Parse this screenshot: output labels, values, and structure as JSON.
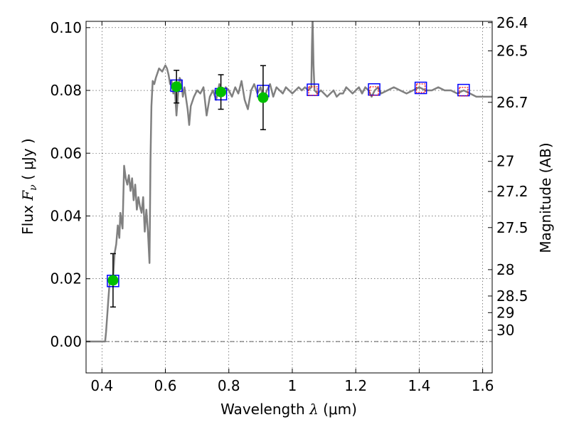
{
  "chart_data": {
    "type": "scatter",
    "xlabel": {
      "prefix": "Wavelength ",
      "symbol": "λ",
      "unit": " (μm)"
    },
    "ylabel": {
      "prefix": "Flux ",
      "symbol": "F",
      "subscript": "ν",
      "unit": " ( μJy )"
    },
    "ylabel_right": "Magnitude (AB)",
    "xlim": [
      0.35,
      1.63
    ],
    "ylim": [
      -0.01,
      0.102
    ],
    "grid": true,
    "x_ticks": [
      {
        "value": 0.4,
        "label": "0.4"
      },
      {
        "value": 0.6,
        "label": "0.6"
      },
      {
        "value": 0.8,
        "label": "0.8"
      },
      {
        "value": 1.0,
        "label": "1"
      },
      {
        "value": 1.2,
        "label": "1.2"
      },
      {
        "value": 1.4,
        "label": "1.4"
      },
      {
        "value": 1.6,
        "label": "1.6"
      }
    ],
    "y_ticks": [
      {
        "value": 0.0,
        "label": "0.00"
      },
      {
        "value": 0.02,
        "label": "0.02"
      },
      {
        "value": 0.04,
        "label": "0.04"
      },
      {
        "value": 0.06,
        "label": "0.06"
      },
      {
        "value": 0.08,
        "label": "0.08"
      },
      {
        "value": 0.1,
        "label": "0.10"
      }
    ],
    "mag_ticks": [
      {
        "value": 0.1016,
        "label": "26.4"
      },
      {
        "value": 0.0926,
        "label": "26.5"
      },
      {
        "value": 0.0762,
        "label": "26.7"
      },
      {
        "value": 0.0574,
        "label": "27"
      },
      {
        "value": 0.0478,
        "label": "27.2"
      },
      {
        "value": 0.0363,
        "label": "27.5"
      },
      {
        "value": 0.0229,
        "label": "28"
      },
      {
        "value": 0.0145,
        "label": "28.5"
      },
      {
        "value": 0.0092,
        "label": "29"
      },
      {
        "value": 0.0036,
        "label": "30"
      }
    ],
    "sed_model": {
      "color": "#808080",
      "x": [
        0.35,
        0.41,
        0.413,
        0.418,
        0.42,
        0.425,
        0.43,
        0.435,
        0.44,
        0.445,
        0.45,
        0.455,
        0.458,
        0.462,
        0.465,
        0.47,
        0.475,
        0.48,
        0.485,
        0.49,
        0.495,
        0.5,
        0.505,
        0.51,
        0.515,
        0.52,
        0.525,
        0.53,
        0.535,
        0.54,
        0.545,
        0.55,
        0.553,
        0.556,
        0.56,
        0.565,
        0.57,
        0.58,
        0.59,
        0.6,
        0.605,
        0.61,
        0.615,
        0.62,
        0.625,
        0.63,
        0.635,
        0.64,
        0.645,
        0.65,
        0.655,
        0.66,
        0.67,
        0.675,
        0.68,
        0.69,
        0.7,
        0.71,
        0.72,
        0.73,
        0.74,
        0.75,
        0.76,
        0.77,
        0.78,
        0.79,
        0.8,
        0.81,
        0.82,
        0.83,
        0.84,
        0.85,
        0.86,
        0.87,
        0.88,
        0.89,
        0.9,
        0.91,
        0.92,
        0.93,
        0.94,
        0.95,
        0.96,
        0.97,
        0.98,
        0.99,
        1.0,
        1.01,
        1.02,
        1.03,
        1.04,
        1.05,
        1.06,
        1.062,
        1.064,
        1.067,
        1.07,
        1.08,
        1.09,
        1.1,
        1.11,
        1.12,
        1.13,
        1.14,
        1.15,
        1.16,
        1.17,
        1.18,
        1.19,
        1.2,
        1.21,
        1.22,
        1.23,
        1.24,
        1.25,
        1.26,
        1.27,
        1.28,
        1.3,
        1.32,
        1.34,
        1.36,
        1.38,
        1.4,
        1.42,
        1.44,
        1.46,
        1.48,
        1.5,
        1.52,
        1.54,
        1.56,
        1.58,
        1.6,
        1.63
      ],
      "y": [
        0.0,
        0.0,
        0.003,
        0.01,
        0.013,
        0.02,
        0.021,
        0.02,
        0.028,
        0.031,
        0.037,
        0.033,
        0.041,
        0.038,
        0.036,
        0.056,
        0.052,
        0.05,
        0.053,
        0.048,
        0.052,
        0.045,
        0.05,
        0.042,
        0.046,
        0.043,
        0.041,
        0.046,
        0.035,
        0.042,
        0.035,
        0.025,
        0.058,
        0.075,
        0.083,
        0.082,
        0.084,
        0.087,
        0.086,
        0.088,
        0.087,
        0.085,
        0.082,
        0.083,
        0.079,
        0.08,
        0.072,
        0.079,
        0.084,
        0.083,
        0.078,
        0.081,
        0.074,
        0.069,
        0.075,
        0.078,
        0.08,
        0.079,
        0.081,
        0.072,
        0.078,
        0.08,
        0.077,
        0.082,
        0.079,
        0.081,
        0.08,
        0.078,
        0.081,
        0.079,
        0.083,
        0.077,
        0.074,
        0.08,
        0.082,
        0.079,
        0.081,
        0.077,
        0.08,
        0.082,
        0.078,
        0.081,
        0.08,
        0.079,
        0.081,
        0.08,
        0.079,
        0.08,
        0.081,
        0.08,
        0.081,
        0.08,
        0.081,
        0.094,
        0.103,
        0.088,
        0.08,
        0.079,
        0.08,
        0.079,
        0.078,
        0.079,
        0.08,
        0.078,
        0.079,
        0.079,
        0.081,
        0.08,
        0.079,
        0.08,
        0.081,
        0.079,
        0.081,
        0.08,
        0.078,
        0.08,
        0.081,
        0.079,
        0.08,
        0.081,
        0.08,
        0.079,
        0.08,
        0.081,
        0.08,
        0.08,
        0.081,
        0.08,
        0.08,
        0.079,
        0.08,
        0.079,
        0.078,
        0.078,
        0.078
      ]
    },
    "observed": {
      "color": "#00bf00",
      "points": [
        {
          "x": 0.435,
          "y": 0.0195,
          "err": 0.0085
        },
        {
          "x": 0.635,
          "y": 0.0812,
          "err": 0.0052
        },
        {
          "x": 0.775,
          "y": 0.0795,
          "err": 0.0055
        },
        {
          "x": 0.908,
          "y": 0.0777,
          "err": 0.0102
        }
      ]
    },
    "model_blue": {
      "color": "#0000ff",
      "points": [
        {
          "x": 0.435,
          "y": 0.0193
        },
        {
          "x": 0.635,
          "y": 0.0815
        },
        {
          "x": 0.775,
          "y": 0.0788
        },
        {
          "x": 0.908,
          "y": 0.0798
        },
        {
          "x": 1.065,
          "y": 0.0802
        },
        {
          "x": 1.258,
          "y": 0.0803
        },
        {
          "x": 1.405,
          "y": 0.0808
        },
        {
          "x": 1.54,
          "y": 0.0801
        }
      ]
    },
    "model_red": {
      "color": "#ff0000",
      "points": [
        {
          "x": 1.065,
          "y": 0.0798
        },
        {
          "x": 1.258,
          "y": 0.0798
        },
        {
          "x": 1.405,
          "y": 0.0807
        },
        {
          "x": 1.54,
          "y": 0.0796
        }
      ]
    }
  }
}
